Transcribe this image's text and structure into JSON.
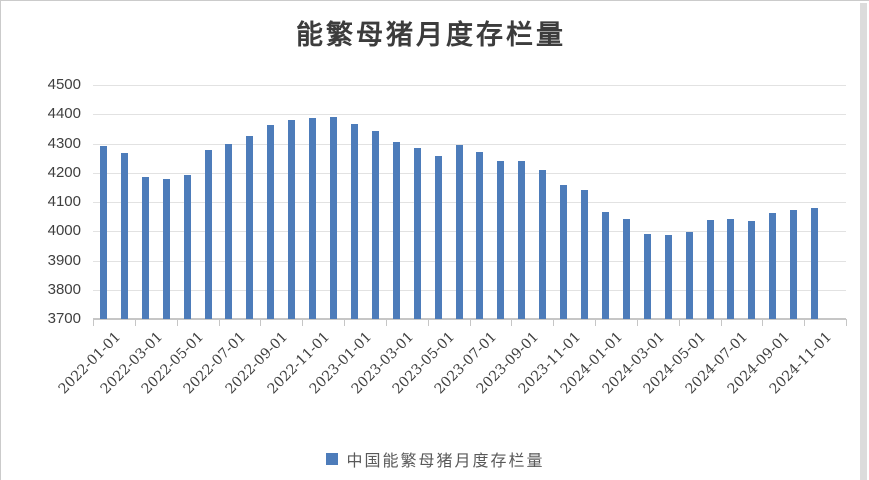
{
  "chart_data": {
    "type": "bar",
    "title": "能繁母猪月度存栏量",
    "legend": [
      {
        "label": "中国能繁母猪月度存栏量",
        "color": "#4d7cba"
      }
    ],
    "legend_position": "bottom",
    "categories": [
      "2022-01-01",
      "2022-02-01",
      "2022-03-01",
      "2022-04-01",
      "2022-05-01",
      "2022-06-01",
      "2022-07-01",
      "2022-08-01",
      "2022-09-01",
      "2022-10-01",
      "2022-11-01",
      "2022-12-01",
      "2023-01-01",
      "2023-02-01",
      "2023-03-01",
      "2023-04-01",
      "2023-05-01",
      "2023-06-01",
      "2023-07-01",
      "2023-08-01",
      "2023-09-01",
      "2023-10-01",
      "2023-11-01",
      "2023-12-01",
      "2024-01-01",
      "2024-02-01",
      "2024-03-01",
      "2024-04-01",
      "2024-05-01",
      "2024-06-01",
      "2024-07-01",
      "2024-08-01",
      "2024-09-01",
      "2024-10-01",
      "2024-11-01"
    ],
    "values": [
      4290,
      4268,
      4185,
      4177,
      4192,
      4277,
      4298,
      4324,
      4362,
      4379,
      4388,
      4390,
      4367,
      4343,
      4305,
      4284,
      4258,
      4296,
      4271,
      4241,
      4240,
      4210,
      4158,
      4142,
      4067,
      4042,
      3992,
      3986,
      3996,
      4038,
      4041,
      4036,
      4062,
      4073,
      4080
    ],
    "x_tick_label_interval": 2,
    "ylim": [
      3700,
      4500
    ],
    "y_ticks": [
      4500,
      4400,
      4300,
      4200,
      4100,
      4000,
      3900,
      3800,
      3700
    ],
    "grid": "horizontal",
    "bar_color": "#4d7cba",
    "gridline_color": "#e2e2e2",
    "axis_color": "#c6c6c6",
    "tick_label_color": "#3f3f3f",
    "title_color": "#3c3c3c",
    "legend_text_color": "#595959"
  }
}
